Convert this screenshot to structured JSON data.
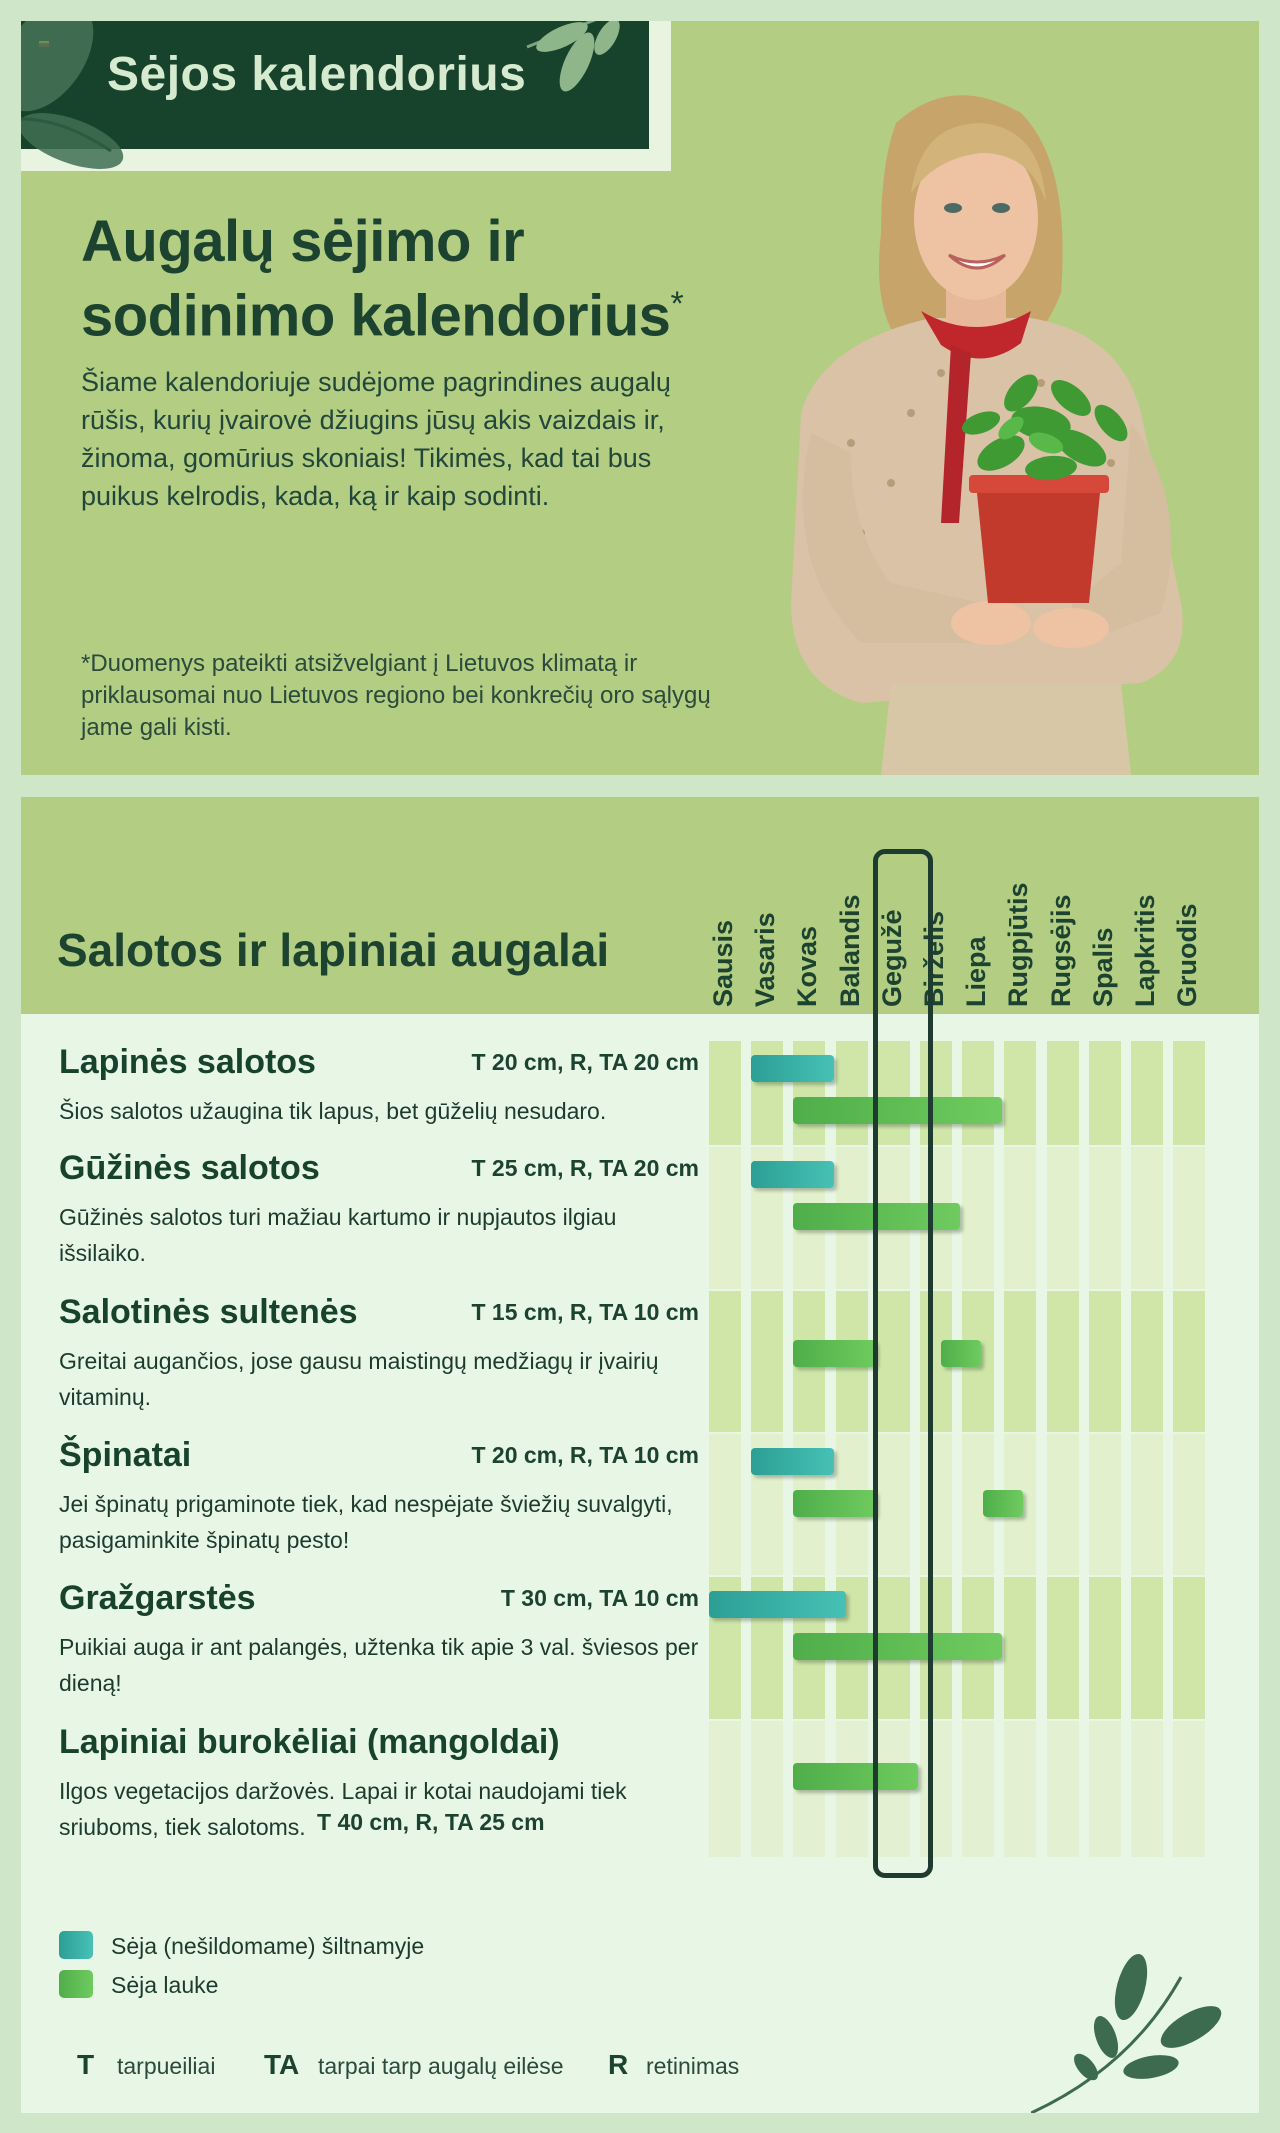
{
  "header": {
    "title": "Sėjos kalendorius"
  },
  "intro": {
    "heading_line1": "Augalų sėjimo ir",
    "heading_line2": "sodinimo kalendorius",
    "heading_mark": "*",
    "body": "Šiame kalendoriuje sudėjome pagrindines augalų rūšis, kurių įvairovė džiugins jūsų akis vaizdais ir, žinoma, gomūrius skoniais! Tikimės, kad tai bus puikus kelrodis, kada, ką ir kaip sodinti.",
    "disclaimer": "*Duomenys pateikti atsižvelgiant į Lietuvos klimatą ir priklausomai nuo Lietuvos regiono bei konkrečių oro sąlygų jame gali kisti."
  },
  "section": {
    "title": "Salotos ir lapiniai augalai"
  },
  "months": [
    "Sausis",
    "Vasaris",
    "Kovas",
    "Balandis",
    "Gegužė",
    "Birželis",
    "Liepa",
    "Rugpjūtis",
    "Rugsėjis",
    "Spalis",
    "Lapkritis",
    "Gruodis"
  ],
  "current_month": "Gegužė",
  "plants": [
    {
      "name": "Lapinės salotos",
      "spec": "T 20 cm, R, TA 20 cm",
      "desc": "Šios salotos užaugina tik lapus, bet gūželių nesudaro.",
      "greenhouse": [
        {
          "start": 2.0,
          "end": 3.8
        }
      ],
      "outdoor": [
        {
          "start": 3.0,
          "end": 7.8
        }
      ]
    },
    {
      "name": "Gūžinės salotos",
      "spec": "T 25 cm, R, TA 20 cm",
      "desc": "Gūžinės salotos turi mažiau kartumo ir nupjautos ilgiau išsilaiko.",
      "greenhouse": [
        {
          "start": 2.0,
          "end": 3.8
        }
      ],
      "outdoor": [
        {
          "start": 3.0,
          "end": 6.8
        }
      ]
    },
    {
      "name": "Salotinės sultenės",
      "spec": "T 15 cm, R, TA 10 cm",
      "desc": "Greitai augančios, jose gausu maistingų medžiagų ir įvairių vitaminų.",
      "greenhouse": [],
      "outdoor": [
        {
          "start": 3.0,
          "end": 4.8
        },
        {
          "start": 6.5,
          "end": 7.3
        }
      ]
    },
    {
      "name": "Špinatai",
      "spec": "T 20 cm, R, TA 10 cm",
      "desc": "Jei špinatų prigaminote tiek, kad nespėjate šviežių suvalgyti, pasigaminkite špinatų pesto!",
      "greenhouse": [
        {
          "start": 2.0,
          "end": 3.8
        }
      ],
      "outdoor": [
        {
          "start": 3.0,
          "end": 4.8
        },
        {
          "start": 7.5,
          "end": 8.3
        }
      ]
    },
    {
      "name": "Gražgarstės",
      "spec": "T 30 cm, TA 10 cm",
      "desc": "Puikiai auga ir ant palangės, užtenka tik apie 3 val. šviesos per dieną!",
      "greenhouse": [
        {
          "start": 1.0,
          "end": 4.1
        }
      ],
      "outdoor": [
        {
          "start": 3.0,
          "end": 7.8
        }
      ]
    },
    {
      "name": "Lapiniai burokėliai (mangoldai)",
      "spec": "T 40 cm, R, TA 25 cm",
      "desc": "Ilgos vegetacijos daržovės. Lapai ir kotai naudojami tiek sriuboms, tiek salotoms.",
      "greenhouse": [],
      "outdoor": [
        {
          "start": 3.0,
          "end": 5.8
        }
      ]
    }
  ],
  "legend": {
    "greenhouse": "Sėja (nešildomame) šiltnamyje",
    "outdoor": "Sėja lauke",
    "greenhouse_color": "#3ab3a8",
    "outdoor_color": "#5cbd52"
  },
  "abbreviations": [
    {
      "key": "T",
      "label": "tarpueiliai"
    },
    {
      "key": "TA",
      "label": "tarpai tarp augalų eilėse"
    },
    {
      "key": "R",
      "label": "retinimas"
    }
  ]
}
